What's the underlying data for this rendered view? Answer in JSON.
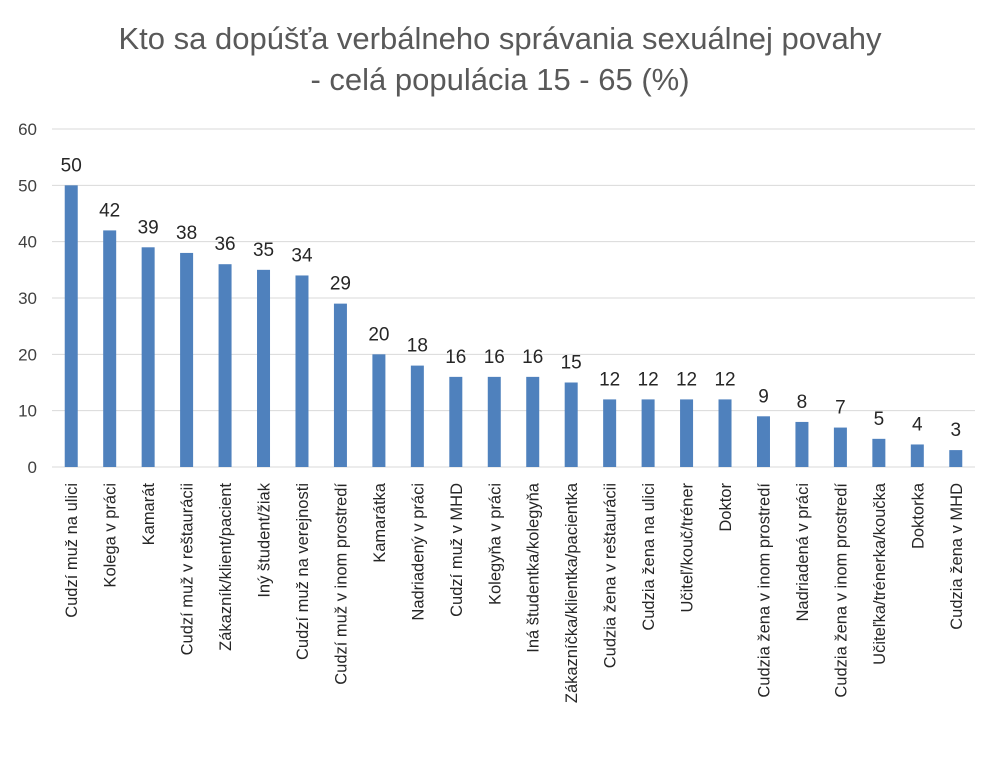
{
  "chart_data": {
    "type": "bar",
    "title": "Kto sa dopúšťa verbálneho správania sexuálnej povahy",
    "subtitle": "- celá populácia 15 - 65 (%)",
    "xlabel": "",
    "ylabel": "",
    "ylim": [
      0,
      60
    ],
    "yticks": [
      0,
      10,
      20,
      30,
      40,
      50,
      60
    ],
    "grid": true,
    "bar_color": "#4f81bd",
    "categories": [
      "Cudzí muž na ulici",
      "Kolega v práci",
      "Kamarát",
      "Cudzí muž v reštaurácii",
      "Zákazník/klient/pacient",
      "Iný študent/žiak",
      "Cudzí muž na verejnosti",
      "Cudzí muž v inom prostredí",
      "Kamarátka",
      "Nadriadený v práci",
      "Cudzí muž v MHD",
      "Kolegyňa v práci",
      "Iná študentka/kolegyňa",
      "Zákazníčka/klientka/pacientka",
      "Cudzia žena v reštaurácii",
      "Cudzia žena na ulici",
      "Učiteľ/kouč/tréner",
      "Doktor",
      "Cudzia žena v inom prostredí",
      "Nadriadená v práci",
      "Cudzia žena v inom prostredí",
      "Učiteľka/trénerka/koučka",
      "Doktorka",
      "Cudzia žena v MHD"
    ],
    "values": [
      50,
      42,
      39,
      38,
      36,
      35,
      34,
      29,
      20,
      18,
      16,
      16,
      16,
      15,
      12,
      12,
      12,
      12,
      9,
      8,
      7,
      5,
      4,
      3
    ]
  }
}
